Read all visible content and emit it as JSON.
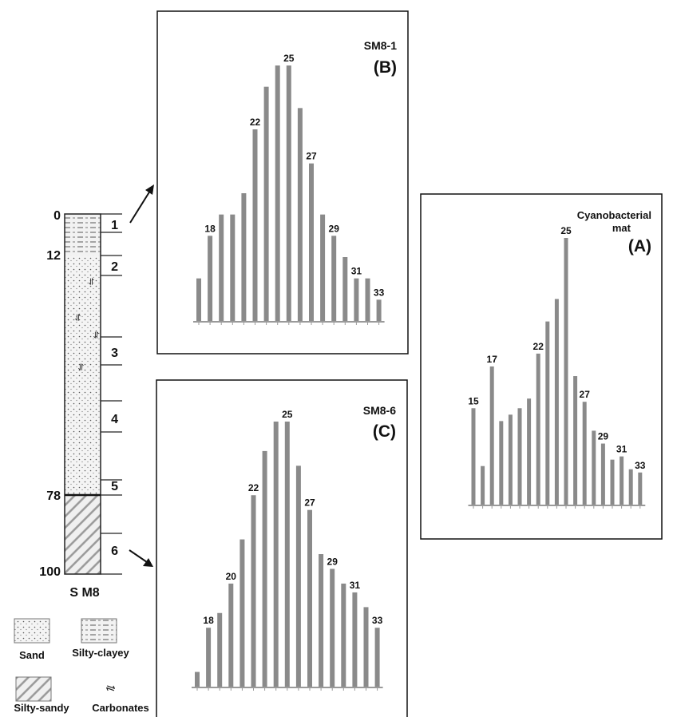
{
  "colors": {
    "bar": "#8a8a8a",
    "ink": "#111111",
    "baseline": "#9a9a9a"
  },
  "chart_data": [
    {
      "type": "bar",
      "title": "SM8-1",
      "panel_label": "(B)",
      "categories": [
        "17",
        "18",
        "19",
        "20",
        "21",
        "22",
        "23",
        "24",
        "25",
        "26",
        "27",
        "28",
        "29",
        "30",
        "31",
        "32",
        "33"
      ],
      "values": [
        10,
        20,
        25,
        25,
        30,
        45,
        55,
        60,
        60,
        50,
        37,
        25,
        20,
        15,
        10,
        10,
        5
      ],
      "ylim": [
        0,
        65
      ],
      "data_labels": [
        {
          "category": "18",
          "text": "18"
        },
        {
          "category": "22",
          "text": "22"
        },
        {
          "category": "25",
          "text": "25"
        },
        {
          "category": "27",
          "text": "27"
        },
        {
          "category": "29",
          "text": "29"
        },
        {
          "category": "31",
          "text": "31"
        },
        {
          "category": "33",
          "text": "33"
        }
      ]
    },
    {
      "type": "bar",
      "title": "SM8-6",
      "panel_label": "(C)",
      "categories": [
        "17",
        "18",
        "19",
        "20",
        "21",
        "22",
        "23",
        "24",
        "25",
        "26",
        "27",
        "28",
        "29",
        "30",
        "31",
        "32",
        "33"
      ],
      "values": [
        5,
        20,
        25,
        35,
        50,
        65,
        80,
        90,
        90,
        75,
        60,
        45,
        40,
        35,
        32,
        27,
        20
      ],
      "ylim": [
        0,
        95
      ],
      "data_labels": [
        {
          "category": "18",
          "text": "18"
        },
        {
          "category": "20",
          "text": "20"
        },
        {
          "category": "22",
          "text": "22"
        },
        {
          "category": "25",
          "text": "25"
        },
        {
          "category": "27",
          "text": "27"
        },
        {
          "category": "29",
          "text": "29"
        },
        {
          "category": "31",
          "text": "31"
        },
        {
          "category": "33",
          "text": "33"
        }
      ]
    },
    {
      "type": "bar",
      "title": "Cyanobacterial mat",
      "title_lines": [
        "Cyanobacterial",
        "mat"
      ],
      "panel_label": "(A)",
      "categories": [
        "15",
        "16",
        "17",
        "18",
        "19",
        "20",
        "21",
        "22",
        "23",
        "24",
        "25",
        "26",
        "27",
        "28",
        "29",
        "30",
        "31",
        "32",
        "33"
      ],
      "values": [
        30,
        12,
        43,
        26,
        28,
        30,
        33,
        47,
        57,
        64,
        83,
        40,
        32,
        23,
        19,
        14,
        15,
        11,
        10
      ],
      "ylim": [
        0,
        90
      ],
      "data_labels": [
        {
          "category": "15",
          "text": "15"
        },
        {
          "category": "17",
          "text": "17"
        },
        {
          "category": "22",
          "text": "22"
        },
        {
          "category": "25",
          "text": "25"
        },
        {
          "category": "27",
          "text": "27"
        },
        {
          "category": "29",
          "text": "29"
        },
        {
          "category": "31",
          "text": "31"
        },
        {
          "category": "33",
          "text": "33"
        }
      ]
    }
  ],
  "core_log": {
    "name": "S M8",
    "depth_labels": [
      "0",
      "12",
      "78",
      "100"
    ],
    "sample_labels": [
      "1",
      "2",
      "3",
      "4",
      "5",
      "6"
    ],
    "layers": [
      {
        "lithology": "Silty-clayey",
        "from": 0,
        "to": 12
      },
      {
        "lithology": "Sand",
        "from": 12,
        "to": 78
      },
      {
        "lithology": "Silty-sandy",
        "from": 78,
        "to": 100
      }
    ],
    "arrows": [
      {
        "sample": "1",
        "to_panel": "(B)"
      },
      {
        "sample": "6",
        "to_panel": "(C)"
      }
    ]
  },
  "legend": [
    {
      "label": "Sand",
      "pattern": "dots"
    },
    {
      "label": "Silty-clayey",
      "pattern": "dashes"
    },
    {
      "label": "Silty-sandy",
      "pattern": "hatch"
    },
    {
      "label": "Carbonates",
      "pattern": "symbol"
    }
  ]
}
